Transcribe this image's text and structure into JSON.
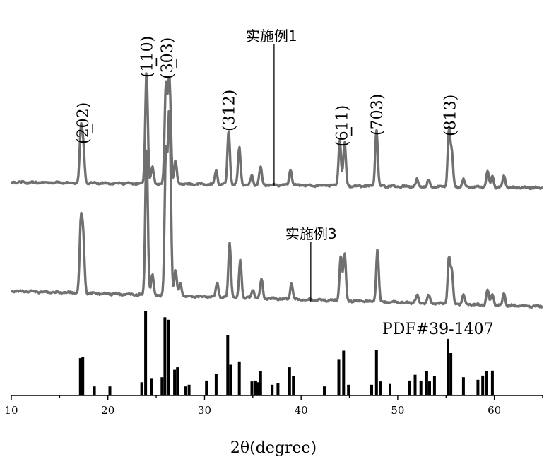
{
  "chart_data": {
    "type": "line",
    "title": "",
    "xlabel": "2θ(degree)",
    "ylabel": "",
    "xlim": [
      10,
      65
    ],
    "xticks": [
      10,
      20,
      30,
      40,
      50,
      60
    ],
    "grid": false,
    "series": [
      {
        "name": "实施例1",
        "label_anchor_x": 37.2,
        "peaks": [
          {
            "x": 17.2,
            "h": 0.45
          },
          {
            "x": 17.45,
            "h": 0.32
          },
          {
            "x": 24.0,
            "h": 1.0
          },
          {
            "x": 24.6,
            "h": 0.15
          },
          {
            "x": 26.0,
            "h": 0.85
          },
          {
            "x": 26.3,
            "h": 0.65
          },
          {
            "x": 26.45,
            "h": 0.45
          },
          {
            "x": 27.0,
            "h": 0.2
          },
          {
            "x": 31.2,
            "h": 0.12
          },
          {
            "x": 32.5,
            "h": 0.48
          },
          {
            "x": 33.6,
            "h": 0.33
          },
          {
            "x": 34.9,
            "h": 0.08
          },
          {
            "x": 35.8,
            "h": 0.16
          },
          {
            "x": 38.9,
            "h": 0.14
          },
          {
            "x": 44.0,
            "h": 0.4
          },
          {
            "x": 44.5,
            "h": 0.38
          },
          {
            "x": 47.8,
            "h": 0.5
          },
          {
            "x": 52.0,
            "h": 0.06
          },
          {
            "x": 53.2,
            "h": 0.06
          },
          {
            "x": 55.3,
            "h": 0.5
          },
          {
            "x": 55.6,
            "h": 0.3
          },
          {
            "x": 56.8,
            "h": 0.07
          },
          {
            "x": 59.3,
            "h": 0.14
          },
          {
            "x": 59.8,
            "h": 0.1
          },
          {
            "x": 61.0,
            "h": 0.11
          }
        ]
      },
      {
        "name": "实施例3",
        "label_anchor_x": 41.0,
        "peaks": [
          {
            "x": 17.2,
            "h": 0.55
          },
          {
            "x": 17.45,
            "h": 0.42
          },
          {
            "x": 24.0,
            "h": 1.18
          },
          {
            "x": 24.6,
            "h": 0.16
          },
          {
            "x": 26.0,
            "h": 1.1
          },
          {
            "x": 26.3,
            "h": 1.0
          },
          {
            "x": 26.45,
            "h": 0.72
          },
          {
            "x": 27.0,
            "h": 0.2
          },
          {
            "x": 27.5,
            "h": 0.1
          },
          {
            "x": 31.3,
            "h": 0.12
          },
          {
            "x": 32.6,
            "h": 0.43
          },
          {
            "x": 33.7,
            "h": 0.3
          },
          {
            "x": 35.0,
            "h": 0.07
          },
          {
            "x": 35.9,
            "h": 0.15
          },
          {
            "x": 39.0,
            "h": 0.13
          },
          {
            "x": 44.1,
            "h": 0.36
          },
          {
            "x": 44.5,
            "h": 0.38
          },
          {
            "x": 47.9,
            "h": 0.42
          },
          {
            "x": 52.0,
            "h": 0.06
          },
          {
            "x": 53.2,
            "h": 0.06
          },
          {
            "x": 55.3,
            "h": 0.36
          },
          {
            "x": 55.6,
            "h": 0.25
          },
          {
            "x": 56.8,
            "h": 0.07
          },
          {
            "x": 59.3,
            "h": 0.12
          },
          {
            "x": 59.8,
            "h": 0.09
          },
          {
            "x": 61.0,
            "h": 0.1
          }
        ]
      }
    ],
    "reference": {
      "name": "PDF#39-1407",
      "lines": [
        {
          "x": 17.15,
          "h": 0.44
        },
        {
          "x": 17.4,
          "h": 0.45
        },
        {
          "x": 18.6,
          "h": 0.1
        },
        {
          "x": 20.2,
          "h": 0.1
        },
        {
          "x": 23.5,
          "h": 0.15
        },
        {
          "x": 23.9,
          "h": 1.0
        },
        {
          "x": 24.5,
          "h": 0.2
        },
        {
          "x": 25.6,
          "h": 0.21
        },
        {
          "x": 25.9,
          "h": 0.93
        },
        {
          "x": 26.3,
          "h": 0.9
        },
        {
          "x": 26.9,
          "h": 0.3
        },
        {
          "x": 27.2,
          "h": 0.33
        },
        {
          "x": 28.0,
          "h": 0.1
        },
        {
          "x": 28.4,
          "h": 0.12
        },
        {
          "x": 30.2,
          "h": 0.17
        },
        {
          "x": 31.2,
          "h": 0.25
        },
        {
          "x": 32.4,
          "h": 0.72
        },
        {
          "x": 32.7,
          "h": 0.36
        },
        {
          "x": 33.6,
          "h": 0.4
        },
        {
          "x": 34.9,
          "h": 0.16
        },
        {
          "x": 35.3,
          "h": 0.17
        },
        {
          "x": 35.5,
          "h": 0.15
        },
        {
          "x": 35.8,
          "h": 0.28
        },
        {
          "x": 37.0,
          "h": 0.12
        },
        {
          "x": 37.6,
          "h": 0.14
        },
        {
          "x": 38.8,
          "h": 0.33
        },
        {
          "x": 39.2,
          "h": 0.22
        },
        {
          "x": 42.4,
          "h": 0.1
        },
        {
          "x": 43.9,
          "h": 0.42
        },
        {
          "x": 44.4,
          "h": 0.53
        },
        {
          "x": 44.9,
          "h": 0.12
        },
        {
          "x": 47.3,
          "h": 0.12
        },
        {
          "x": 47.8,
          "h": 0.54
        },
        {
          "x": 48.2,
          "h": 0.16
        },
        {
          "x": 49.2,
          "h": 0.13
        },
        {
          "x": 51.2,
          "h": 0.17
        },
        {
          "x": 51.8,
          "h": 0.24
        },
        {
          "x": 52.4,
          "h": 0.17
        },
        {
          "x": 53.0,
          "h": 0.28
        },
        {
          "x": 53.3,
          "h": 0.16
        },
        {
          "x": 53.8,
          "h": 0.22
        },
        {
          "x": 55.2,
          "h": 0.67
        },
        {
          "x": 55.5,
          "h": 0.5
        },
        {
          "x": 56.8,
          "h": 0.21
        },
        {
          "x": 58.3,
          "h": 0.18
        },
        {
          "x": 58.8,
          "h": 0.23
        },
        {
          "x": 59.2,
          "h": 0.28
        },
        {
          "x": 59.8,
          "h": 0.29
        }
      ]
    },
    "annotations": [
      {
        "text": "(202)",
        "bar": true,
        "x": 17.4
      },
      {
        "text": "(110)",
        "bar": true,
        "x": 24.0
      },
      {
        "text": "(303)",
        "bar": true,
        "x": 26.1
      },
      {
        "text": "(312)",
        "bar": false,
        "x": 32.5
      },
      {
        "text": "(611)",
        "bar": true,
        "x": 44.2
      },
      {
        "text": "(703)",
        "bar": false,
        "x": 47.8
      },
      {
        "text": "(813)",
        "bar": false,
        "x": 55.4
      }
    ]
  }
}
